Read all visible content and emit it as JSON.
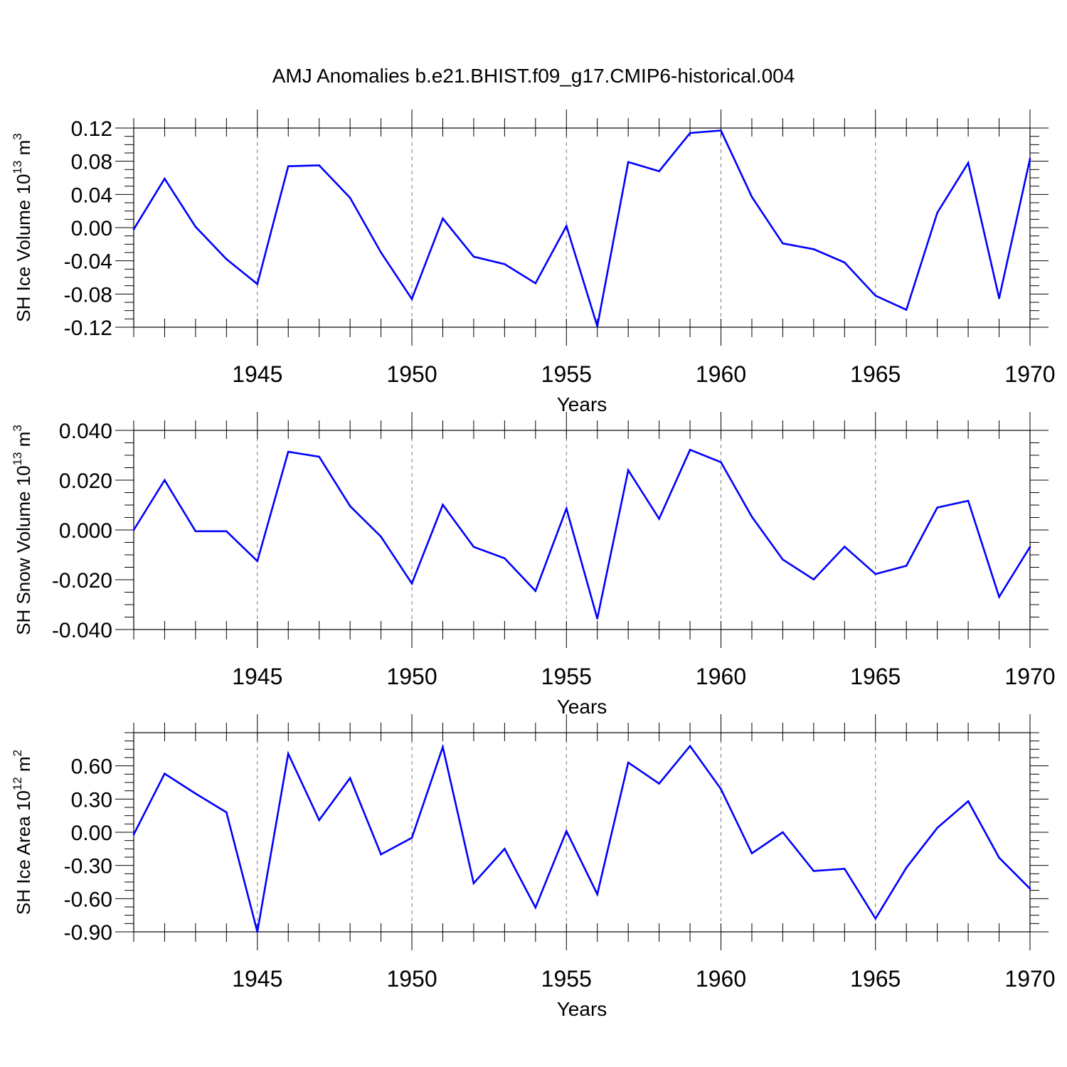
{
  "title": "AMJ Anomalies b.e21.BHIST.f09_g17.CMIP6-historical.004",
  "chart_data": [
    {
      "type": "line",
      "ylabel": {
        "text": "SH Ice Volume 10",
        "exponent": "13",
        "unit": " m",
        "unit_exponent": "3"
      },
      "xlabel": "Years",
      "xlim": [
        1941,
        1970
      ],
      "ylim": [
        -0.12,
        0.12
      ],
      "yticks": [
        "-0.12",
        "-0.08",
        "-0.04",
        "0.00",
        "0.04",
        "0.08",
        "0.12"
      ],
      "xticks": [
        "1945",
        "1950",
        "1955",
        "1960",
        "1965",
        "1970"
      ],
      "grid": "vertical dashed at labeled years",
      "color": "#0000ff",
      "series": [
        {
          "x": [
            1941,
            1942,
            1943,
            1944,
            1945,
            1946,
            1947,
            1948,
            1949,
            1950,
            1951,
            1952,
            1953,
            1954,
            1955,
            1956,
            1957,
            1958,
            1959,
            1960,
            1961,
            1962,
            1963,
            1964,
            1965,
            1966,
            1967,
            1968,
            1969,
            1970
          ],
          "values": [
            -0.002,
            0.059,
            0.001,
            -0.038,
            -0.068,
            0.074,
            0.075,
            0.036,
            -0.03,
            -0.086,
            0.011,
            -0.035,
            -0.044,
            -0.067,
            0.002,
            -0.119,
            0.079,
            0.068,
            0.114,
            0.117,
            0.037,
            -0.019,
            -0.026,
            -0.042,
            -0.082,
            -0.099,
            0.018,
            0.078,
            -0.085,
            0.083
          ]
        }
      ]
    },
    {
      "type": "line",
      "ylabel": {
        "text": "SH Snow Volume 10",
        "exponent": "13",
        "unit": " m",
        "unit_exponent": "3"
      },
      "xlabel": "Years",
      "xlim": [
        1941,
        1970
      ],
      "ylim": [
        -0.04,
        0.04
      ],
      "yticks": [
        "-0.040",
        "-0.020",
        "0.000",
        "0.020",
        "0.040"
      ],
      "xticks": [
        "1945",
        "1950",
        "1955",
        "1960",
        "1965",
        "1970"
      ],
      "grid": "vertical dashed at labeled years",
      "color": "#0000ff",
      "series": [
        {
          "x": [
            1941,
            1942,
            1943,
            1944,
            1945,
            1946,
            1947,
            1948,
            1949,
            1950,
            1951,
            1952,
            1953,
            1954,
            1955,
            1956,
            1957,
            1958,
            1959,
            1960,
            1961,
            1962,
            1963,
            1964,
            1965,
            1966,
            1967,
            1968,
            1969,
            1970
          ],
          "values": [
            0.0,
            0.02,
            -0.0005,
            -0.0005,
            -0.0125,
            0.0314,
            0.0294,
            0.0096,
            -0.0027,
            -0.0215,
            0.0101,
            -0.0068,
            -0.0114,
            -0.0245,
            0.0086,
            -0.0356,
            0.024,
            0.0045,
            0.0322,
            0.0272,
            0.0053,
            -0.0119,
            -0.0199,
            -0.0067,
            -0.0177,
            -0.0144,
            0.009,
            0.0117,
            -0.0269,
            -0.0068
          ]
        }
      ]
    },
    {
      "type": "line",
      "ylabel": {
        "text": "SH Ice Area 10",
        "exponent": "12",
        "unit": " m",
        "unit_exponent": "2"
      },
      "xlabel": "Years",
      "xlim": [
        1941,
        1970
      ],
      "ylim": [
        -0.9,
        0.9
      ],
      "yticks": [
        "-0.90",
        "-0.60",
        "-0.30",
        "0.00",
        "0.30",
        "0.60"
      ],
      "xticks": [
        "1945",
        "1950",
        "1955",
        "1960",
        "1965",
        "1970"
      ],
      "grid": "vertical dashed at labeled years",
      "color": "#0000ff",
      "series": [
        {
          "x": [
            1941,
            1942,
            1943,
            1944,
            1945,
            1946,
            1947,
            1948,
            1949,
            1950,
            1951,
            1952,
            1953,
            1954,
            1955,
            1956,
            1957,
            1958,
            1959,
            1960,
            1961,
            1962,
            1963,
            1964,
            1965,
            1966,
            1967,
            1968,
            1969,
            1970
          ],
          "values": [
            -0.02,
            0.53,
            0.35,
            0.18,
            -0.9,
            0.71,
            0.11,
            0.49,
            -0.2,
            -0.05,
            0.77,
            -0.46,
            -0.15,
            -0.68,
            0.01,
            -0.56,
            0.63,
            0.44,
            0.78,
            0.39,
            -0.19,
            0.0,
            -0.35,
            -0.33,
            -0.78,
            -0.32,
            0.04,
            0.28,
            -0.23,
            -0.51
          ]
        }
      ]
    }
  ]
}
